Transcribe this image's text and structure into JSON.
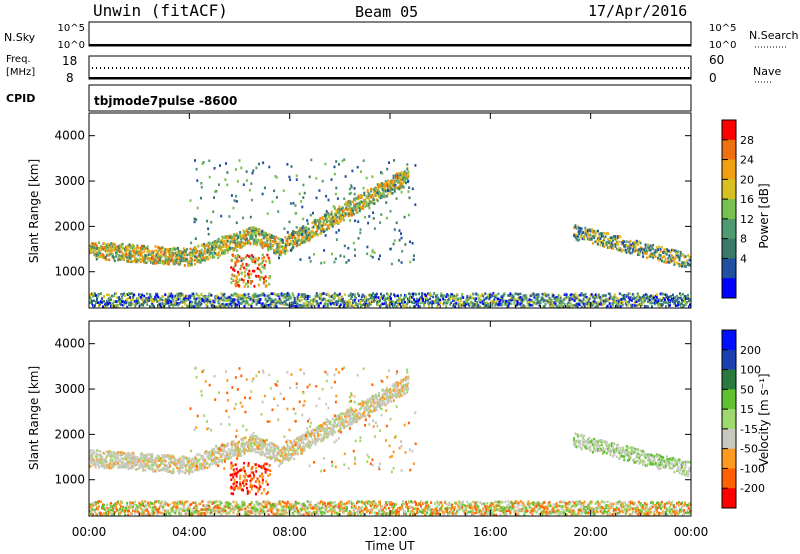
{
  "header": {
    "station": "Unwin (fitACF)",
    "beam": "Beam 05",
    "date": "17/Apr/2016"
  },
  "nsky_panel": {
    "left_label": "N.Sky",
    "right_label": "N.Search",
    "ticks_left": [
      "10^5",
      "10^0"
    ],
    "ticks_right": [
      "10^5",
      "10^0"
    ]
  },
  "freq_panel": {
    "left_label_line1": "Freq.",
    "left_label_line2": "[MHz]",
    "right_label": "Nave",
    "ticks_left": [
      "18",
      "8"
    ],
    "ticks_right": [
      "60",
      "0"
    ]
  },
  "cpid": {
    "label": "CPID",
    "value": "tbjmode7pulse -8600"
  },
  "chart_data": [
    {
      "type": "heatmap",
      "name_label": "Power",
      "ylabel": "Slant Range [km]",
      "colorbar_label": "Power [dB]",
      "colorbar_ticks": [
        "28",
        "24",
        "20",
        "16",
        "12",
        "8",
        "4"
      ],
      "y_ticks": [
        "4000",
        "3000",
        "2000",
        "1000"
      ],
      "ylim": [
        200,
        4500
      ]
    },
    {
      "type": "heatmap",
      "name_label": "Velocity",
      "ylabel": "Slant Range [km]",
      "colorbar_label": "Velocity [m s⁻¹]",
      "colorbar_ticks": [
        "200",
        "100",
        "50",
        "15",
        "-15",
        "-50",
        "-100",
        "-200"
      ],
      "y_ticks": [
        "4000",
        "3000",
        "2000",
        "1000"
      ],
      "ylim": [
        200,
        4500
      ],
      "xlabel": "Time UT",
      "x_ticks": [
        "00:00",
        "04:00",
        "08:00",
        "12:00",
        "16:00",
        "20:00",
        "00:00"
      ],
      "xlim_hours": [
        0,
        24
      ]
    }
  ],
  "colors": {
    "power": [
      "#0000ff",
      "#2050a0",
      "#3a7a6a",
      "#4f9a70",
      "#78c050",
      "#d8c020",
      "#f0a010",
      "#f07010",
      "#ff0000"
    ],
    "velocity": [
      "#ff0000",
      "#ff6000",
      "#ff9a20",
      "#c8c8c0",
      "#a0d870",
      "#60c030",
      "#2a7a40",
      "#1a40b0",
      "#0010ff"
    ]
  }
}
